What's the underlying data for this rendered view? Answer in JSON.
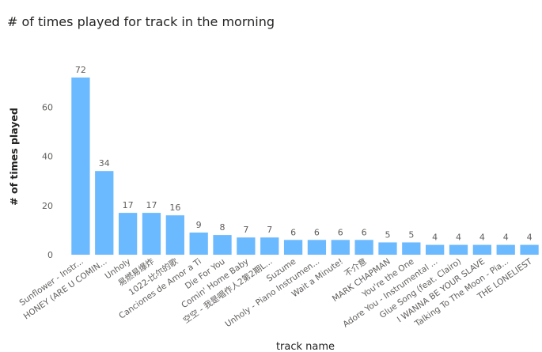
{
  "chart_data": {
    "type": "bar",
    "title": "# of times played for track in the morning",
    "xlabel": "track name",
    "ylabel": "# of times played",
    "ylim": [
      0,
      76
    ],
    "yticks": [
      0,
      20,
      40,
      60
    ],
    "grid": false,
    "data_labels": true,
    "bar_color": "#6BB9FF",
    "categories": [
      "Sunflower - Instr...",
      "HONEY (ARE U COMIN...",
      "Unholy",
      "易燃易爆炸",
      "1022-比尔的歌",
      "Canciones de Amor a Ti",
      "Die For You",
      "Comin' Home Baby",
      "空空 - 我是唱作人2第2期L...",
      "Suzume",
      "Unholy - Piano Instrumen...",
      "Wait a Minute!",
      "不介意",
      "MARK CHAPMAN",
      "You're the One",
      "Adore You - Instrumental ...",
      "Glue Song (feat. Clairo)",
      "I WANNA BE YOUR SLAVE",
      "Talking To The Moon - Pia...",
      "THE LONELIEST"
    ],
    "values": [
      72,
      34,
      17,
      17,
      16,
      9,
      8,
      7,
      7,
      6,
      6,
      6,
      6,
      5,
      5,
      4,
      4,
      4,
      4,
      4
    ]
  }
}
